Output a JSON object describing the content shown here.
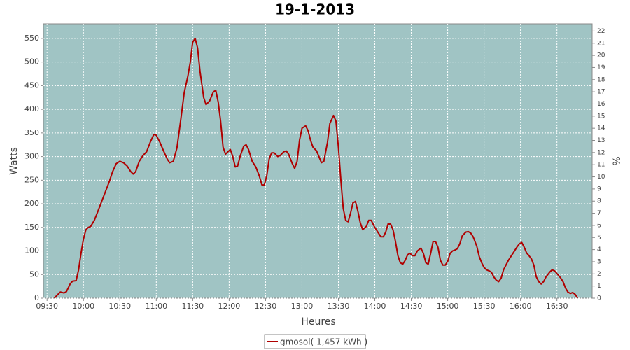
{
  "chart_data": {
    "type": "line",
    "title": "19-1-2013",
    "x_label": "Heures",
    "y_label": "Watts",
    "y2_label": "%",
    "x": [
      "09:36",
      "09:39",
      "09:41",
      "09:44",
      "09:46",
      "09:49",
      "09:51",
      "09:54",
      "09:56",
      "09:58",
      "10:00",
      "10:02",
      "10:04",
      "10:06",
      "10:09",
      "10:12",
      "10:15",
      "10:18",
      "10:21",
      "10:24",
      "10:27",
      "10:30",
      "10:33",
      "10:36",
      "10:39",
      "10:41",
      "10:43",
      "10:46",
      "10:49",
      "10:52",
      "10:55",
      "10:58",
      "11:00",
      "11:03",
      "11:06",
      "11:09",
      "11:11",
      "11:14",
      "11:17",
      "11:20",
      "11:23",
      "11:26",
      "11:28",
      "11:30",
      "11:32",
      "11:34",
      "11:36",
      "11:39",
      "11:41",
      "11:44",
      "11:47",
      "11:49",
      "11:51",
      "11:53",
      "11:55",
      "11:57",
      "11:59",
      "12:01",
      "12:03",
      "12:05",
      "12:07",
      "12:09",
      "12:12",
      "12:14",
      "12:16",
      "12:19",
      "12:22",
      "12:25",
      "12:27",
      "12:29",
      "12:31",
      "12:33",
      "12:35",
      "12:37",
      "12:40",
      "12:42",
      "12:45",
      "12:47",
      "12:49",
      "12:52",
      "12:54",
      "12:56",
      "12:58",
      "13:00",
      "13:03",
      "13:05",
      "13:07",
      "13:09",
      "13:12",
      "13:14",
      "13:16",
      "13:18",
      "13:21",
      "13:23",
      "13:26",
      "13:28",
      "13:30",
      "13:32",
      "13:34",
      "13:36",
      "13:38",
      "13:40",
      "13:42",
      "13:44",
      "13:46",
      "13:48",
      "13:50",
      "13:53",
      "13:55",
      "13:57",
      "14:00",
      "14:03",
      "14:05",
      "14:07",
      "14:09",
      "14:11",
      "14:13",
      "14:15",
      "14:17",
      "14:19",
      "14:21",
      "14:23",
      "14:25",
      "14:27",
      "14:29",
      "14:31",
      "14:33",
      "14:35",
      "14:38",
      "14:40",
      "14:42",
      "14:44",
      "14:46",
      "14:48",
      "14:50",
      "14:52",
      "14:54",
      "14:56",
      "14:58",
      "15:00",
      "15:02",
      "15:04",
      "15:06",
      "15:08",
      "15:10",
      "15:12",
      "15:15",
      "15:17",
      "15:19",
      "15:21",
      "15:24",
      "15:26",
      "15:28",
      "15:30",
      "15:32",
      "15:34",
      "15:36",
      "15:38",
      "15:40",
      "15:42",
      "15:44",
      "15:46",
      "15:48",
      "15:50",
      "15:52",
      "15:54",
      "15:57",
      "15:59",
      "16:01",
      "16:03",
      "16:05",
      "16:07",
      "16:09",
      "16:11",
      "16:13",
      "16:15",
      "16:17",
      "16:19",
      "16:21",
      "16:24",
      "16:26",
      "16:28",
      "16:30",
      "16:33",
      "16:35",
      "16:37",
      "16:39",
      "16:41",
      "16:43",
      "16:45",
      "16:47"
    ],
    "series": [
      {
        "name": "gmosol( 1,457 kWh )",
        "color": "#b00000",
        "values": [
          0,
          8,
          13,
          11,
          14,
          30,
          36,
          37,
          60,
          95,
          125,
          145,
          150,
          152,
          165,
          185,
          205,
          225,
          245,
          268,
          285,
          290,
          287,
          280,
          268,
          263,
          268,
          290,
          302,
          310,
          330,
          347,
          345,
          330,
          312,
          295,
          287,
          290,
          318,
          375,
          435,
          470,
          500,
          542,
          550,
          530,
          480,
          425,
          410,
          418,
          437,
          440,
          415,
          375,
          320,
          305,
          310,
          315,
          300,
          278,
          280,
          300,
          322,
          325,
          315,
          290,
          278,
          258,
          240,
          240,
          260,
          295,
          308,
          308,
          300,
          302,
          310,
          312,
          305,
          285,
          275,
          290,
          335,
          360,
          365,
          355,
          335,
          320,
          312,
          300,
          287,
          290,
          330,
          370,
          387,
          375,
          320,
          250,
          190,
          165,
          162,
          180,
          202,
          205,
          185,
          160,
          145,
          152,
          165,
          165,
          150,
          138,
          130,
          130,
          140,
          158,
          157,
          145,
          120,
          90,
          75,
          72,
          80,
          92,
          95,
          90,
          90,
          100,
          106,
          95,
          75,
          72,
          95,
          120,
          120,
          108,
          80,
          70,
          70,
          78,
          95,
          100,
          102,
          105,
          115,
          132,
          140,
          141,
          138,
          130,
          110,
          88,
          75,
          65,
          60,
          58,
          55,
          45,
          38,
          35,
          42,
          60,
          70,
          80,
          88,
          96,
          108,
          115,
          118,
          108,
          96,
          90,
          83,
          70,
          45,
          35,
          30,
          35,
          45,
          55,
          60,
          58,
          52,
          43,
          35,
          22,
          13,
          10,
          12,
          8,
          0
        ]
      }
    ],
    "xlim": [
      "09:27",
      "16:59"
    ],
    "xticks": [
      "09:30",
      "10:00",
      "10:30",
      "11:00",
      "11:30",
      "12:00",
      "12:30",
      "13:00",
      "13:30",
      "14:00",
      "14:30",
      "15:00",
      "15:30",
      "16:00",
      "16:30"
    ],
    "ylim": [
      0,
      581
    ],
    "yticks": [
      0,
      50,
      100,
      150,
      200,
      250,
      300,
      350,
      400,
      450,
      500,
      550
    ],
    "y2lim": [
      0,
      22.6
    ],
    "y2ticks": [
      0,
      1,
      2,
      3,
      4,
      5,
      6,
      7,
      8,
      9,
      10,
      11,
      12,
      13,
      14,
      15,
      16,
      17,
      18,
      19,
      20,
      21,
      22
    ],
    "grid": true,
    "background": "#a0c4c4"
  }
}
